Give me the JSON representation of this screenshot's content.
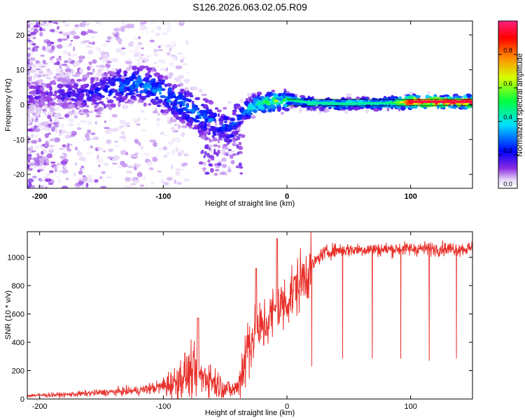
{
  "title": "S126.2026.063.02.05.R09",
  "chart_data": [
    {
      "type": "heatmap",
      "name": "spectrogram",
      "xlabel": "Height of straight line (km)",
      "ylabel": "Frequency (Hz)",
      "xlim": [
        -210,
        150
      ],
      "ylim": [
        -24,
        24
      ],
      "xticks": [
        -200,
        -100,
        0,
        100
      ],
      "yticks": [
        -20,
        -10,
        0,
        10,
        20
      ],
      "colorbar": {
        "label": "Normalized spectral amplitude",
        "range": [
          0,
          1
        ],
        "ticks": [
          0.0,
          0.2,
          0.4,
          0.6,
          0.8
        ]
      },
      "ridge": {
        "x": [
          -205,
          -190,
          -175,
          -160,
          -145,
          -130,
          -120,
          -110,
          -100,
          -90,
          -80,
          -70,
          -60,
          -52,
          -46,
          -40,
          -35,
          -30,
          -25,
          -20,
          -15,
          -10,
          -5,
          0,
          10,
          20,
          40,
          60,
          80,
          90,
          100,
          120,
          150
        ],
        "freq": [
          3,
          3,
          3,
          3,
          4,
          6,
          6,
          5,
          3,
          1,
          -1,
          -3,
          -5,
          -6,
          -7,
          -4,
          -2,
          -1,
          0,
          0.5,
          0.5,
          1,
          1,
          1.5,
          0.8,
          0.5,
          0.2,
          0.3,
          0.4,
          0.6,
          0.8,
          0.8,
          0.8
        ],
        "amplitude": [
          0.15,
          0.15,
          0.18,
          0.2,
          0.25,
          0.3,
          0.3,
          0.3,
          0.3,
          0.3,
          0.3,
          0.3,
          0.3,
          0.25,
          0.25,
          0.3,
          0.35,
          0.4,
          0.45,
          0.5,
          0.55,
          0.55,
          0.5,
          0.5,
          0.45,
          0.45,
          0.45,
          0.45,
          0.45,
          0.6,
          0.95,
          0.95,
          0.95
        ]
      }
    },
    {
      "type": "line",
      "name": "snr",
      "xlabel": "Height of straight line (km)",
      "ylabel": "SNR (10 * v/v)",
      "xlim": [
        -210,
        150
      ],
      "ylim": [
        0,
        1180
      ],
      "xticks": [
        -200,
        -100,
        0,
        100
      ],
      "yticks": [
        0,
        200,
        400,
        600,
        800,
        1000
      ],
      "color": "#e8302a",
      "envelope": {
        "x": [
          -210,
          -180,
          -150,
          -120,
          -100,
          -90,
          -85,
          -80,
          -75,
          -70,
          -65,
          -60,
          -55,
          -50,
          -45,
          -40,
          -35,
          -30,
          -25,
          -20,
          -15,
          -10,
          -5,
          0,
          5,
          10,
          15,
          20,
          25,
          30,
          40,
          60,
          80,
          100,
          120,
          150
        ],
        "y": [
          25,
          30,
          45,
          60,
          90,
          120,
          160,
          180,
          180,
          150,
          160,
          130,
          100,
          80,
          60,
          80,
          250,
          420,
          470,
          500,
          560,
          610,
          650,
          700,
          760,
          820,
          880,
          940,
          990,
          1030,
          1050,
          1055,
          1055,
          1060,
          1060,
          1060
        ]
      },
      "dips": [
        {
          "x": 20,
          "y": 230
        },
        {
          "x": 45,
          "y": 285
        },
        {
          "x": 69,
          "y": 285
        },
        {
          "x": 92,
          "y": 285
        },
        {
          "x": 115,
          "y": 270
        },
        {
          "x": 137,
          "y": 285
        }
      ],
      "peaks": [
        {
          "x": -72,
          "y": 570
        },
        {
          "x": -25,
          "y": 920
        },
        {
          "x": -8,
          "y": 1130
        }
      ]
    }
  ]
}
